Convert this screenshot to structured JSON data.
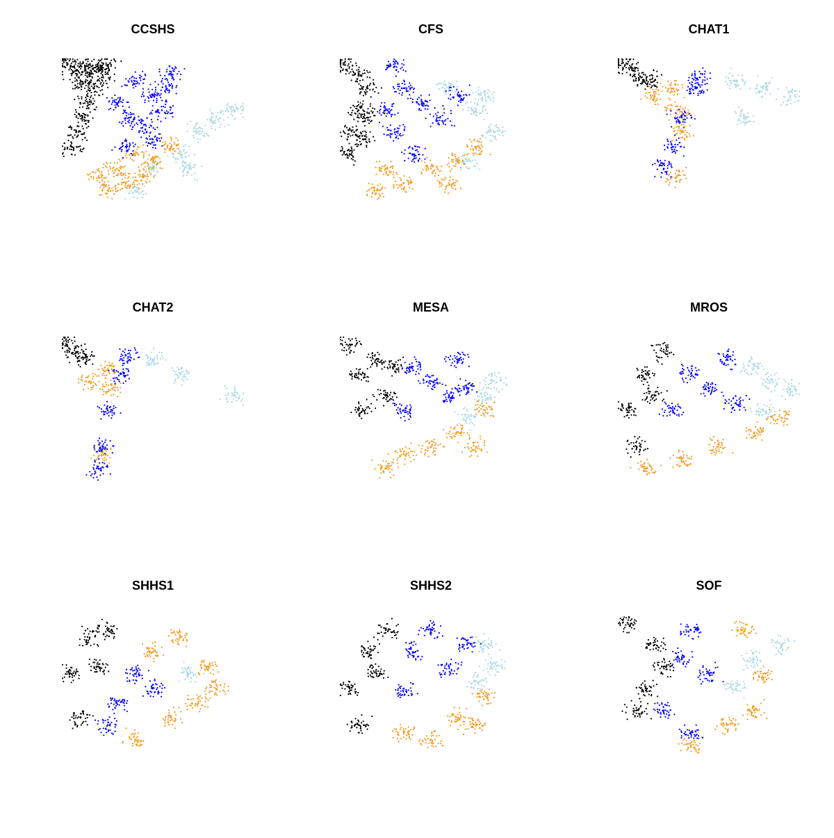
{
  "figure": {
    "description_type": "scatter grid"
  },
  "colors": {
    "black": "#000000",
    "blue": "#0000ff",
    "orange": "#f39a1c",
    "lightblue": "#a8d8e6"
  },
  "chart_data": [
    {
      "type": "scatter",
      "title": "CCSHS",
      "xlabel": "",
      "ylabel": "",
      "grid": false,
      "series": [
        {
          "name": "black",
          "color": "#000000",
          "points": [
            [
              -0.95,
              0.92
            ],
            [
              -0.85,
              0.85
            ],
            [
              -0.75,
              0.9
            ],
            [
              -0.7,
              0.8
            ],
            [
              -0.8,
              0.7
            ],
            [
              -0.65,
              0.6
            ],
            [
              -0.72,
              0.4
            ],
            [
              -0.78,
              0.2
            ],
            [
              -0.85,
              0.0
            ],
            [
              -0.9,
              -0.2
            ],
            [
              -0.6,
              0.88
            ],
            [
              -0.55,
              0.75
            ],
            [
              -0.5,
              0.92
            ]
          ]
        },
        {
          "name": "blue",
          "color": "#0000ff",
          "points": [
            [
              -0.2,
              0.7
            ],
            [
              0.0,
              0.5
            ],
            [
              0.1,
              0.3
            ],
            [
              -0.1,
              0.1
            ],
            [
              -0.3,
              -0.2
            ],
            [
              0.2,
              0.8
            ],
            [
              -0.4,
              0.4
            ],
            [
              0.0,
              -0.1
            ],
            [
              0.15,
              0.6
            ],
            [
              -0.25,
              0.2
            ]
          ]
        },
        {
          "name": "orange",
          "color": "#f39a1c",
          "points": [
            [
              -0.6,
              -0.6
            ],
            [
              -0.4,
              -0.5
            ],
            [
              -0.2,
              -0.3
            ],
            [
              -0.5,
              -0.8
            ],
            [
              -0.3,
              -0.7
            ],
            [
              0.0,
              -0.4
            ],
            [
              -0.1,
              -0.6
            ],
            [
              0.2,
              -0.2
            ]
          ]
        },
        {
          "name": "lightblue",
          "color": "#a8d8e6",
          "points": [
            [
              0.0,
              -0.5
            ],
            [
              0.3,
              -0.3
            ],
            [
              0.5,
              0.0
            ],
            [
              0.7,
              0.2
            ],
            [
              -0.2,
              -0.8
            ],
            [
              0.4,
              -0.5
            ],
            [
              0.9,
              0.3
            ]
          ]
        }
      ]
    },
    {
      "type": "scatter",
      "title": "CFS",
      "xlabel": "",
      "ylabel": "",
      "grid": false,
      "series": [
        {
          "name": "black",
          "color": "#000000",
          "points": [
            [
              -0.95,
              0.92
            ],
            [
              -0.8,
              0.8
            ],
            [
              -0.7,
              0.6
            ],
            [
              -0.8,
              0.3
            ],
            [
              -0.85,
              0.0
            ],
            [
              -0.9,
              -0.3
            ],
            [
              -0.75,
              -0.1
            ],
            [
              -0.7,
              0.2
            ]
          ]
        },
        {
          "name": "blue",
          "color": "#0000ff",
          "points": [
            [
              -0.4,
              0.9
            ],
            [
              -0.3,
              0.6
            ],
            [
              -0.1,
              0.4
            ],
            [
              0.1,
              0.2
            ],
            [
              -0.4,
              0.0
            ],
            [
              -0.2,
              -0.3
            ],
            [
              0.3,
              0.5
            ],
            [
              -0.5,
              0.3
            ]
          ]
        },
        {
          "name": "orange",
          "color": "#f39a1c",
          "points": [
            [
              -0.6,
              -0.8
            ],
            [
              -0.3,
              -0.7
            ],
            [
              0.0,
              -0.5
            ],
            [
              0.3,
              -0.4
            ],
            [
              0.5,
              -0.2
            ],
            [
              -0.5,
              -0.5
            ],
            [
              0.2,
              -0.7
            ]
          ]
        },
        {
          "name": "lightblue",
          "color": "#a8d8e6",
          "points": [
            [
              0.2,
              0.6
            ],
            [
              0.5,
              0.3
            ],
            [
              0.7,
              0.0
            ],
            [
              0.4,
              -0.4
            ],
            [
              0.6,
              0.5
            ]
          ]
        }
      ]
    },
    {
      "type": "scatter",
      "title": "CHAT1",
      "xlabel": "",
      "ylabel": "",
      "grid": false,
      "series": [
        {
          "name": "black",
          "color": "#000000",
          "points": [
            [
              -0.95,
              0.95
            ],
            [
              -0.85,
              0.85
            ],
            [
              -0.75,
              0.75
            ],
            [
              -0.65,
              0.72
            ]
          ]
        },
        {
          "name": "blue",
          "color": "#0000ff",
          "points": [
            [
              -0.1,
              0.75
            ],
            [
              -0.15,
              0.6
            ],
            [
              -0.3,
              0.2
            ],
            [
              -0.4,
              -0.2
            ],
            [
              -0.5,
              -0.5
            ]
          ]
        },
        {
          "name": "orange",
          "color": "#f39a1c",
          "points": [
            [
              -0.6,
              0.5
            ],
            [
              -0.4,
              0.6
            ],
            [
              -0.35,
              0.3
            ],
            [
              -0.3,
              0.0
            ],
            [
              -0.35,
              -0.6
            ]
          ]
        },
        {
          "name": "lightblue",
          "color": "#a8d8e6",
          "points": [
            [
              0.3,
              0.7
            ],
            [
              0.6,
              0.6
            ],
            [
              0.9,
              0.5
            ],
            [
              0.4,
              0.2
            ]
          ]
        }
      ]
    },
    {
      "type": "scatter",
      "title": "CHAT2",
      "xlabel": "",
      "ylabel": "",
      "grid": false,
      "series": [
        {
          "name": "black",
          "color": "#000000",
          "points": [
            [
              -0.95,
              0.9
            ],
            [
              -0.85,
              0.8
            ],
            [
              -0.75,
              0.72
            ]
          ]
        },
        {
          "name": "blue",
          "color": "#0000ff",
          "points": [
            [
              -0.3,
              0.75
            ],
            [
              -0.35,
              0.5
            ],
            [
              -0.5,
              0.0
            ],
            [
              -0.55,
              -0.5
            ],
            [
              -0.6,
              -0.8
            ]
          ]
        },
        {
          "name": "orange",
          "color": "#f39a1c",
          "points": [
            [
              -0.7,
              0.4
            ],
            [
              -0.5,
              0.55
            ],
            [
              -0.45,
              0.3
            ],
            [
              -0.55,
              -0.6
            ]
          ]
        },
        {
          "name": "lightblue",
          "color": "#a8d8e6",
          "points": [
            [
              0.0,
              0.7
            ],
            [
              0.3,
              0.5
            ],
            [
              0.9,
              0.2
            ]
          ]
        }
      ]
    },
    {
      "type": "scatter",
      "title": "MESA",
      "xlabel": "",
      "ylabel": "",
      "grid": false,
      "series": [
        {
          "name": "black",
          "color": "#000000",
          "points": [
            [
              -0.9,
              0.9
            ],
            [
              -0.8,
              0.5
            ],
            [
              -0.6,
              0.7
            ],
            [
              -0.5,
              0.2
            ],
            [
              -0.75,
              0.0
            ],
            [
              -0.4,
              0.6
            ]
          ]
        },
        {
          "name": "blue",
          "color": "#0000ff",
          "points": [
            [
              -0.2,
              0.6
            ],
            [
              0.0,
              0.4
            ],
            [
              0.2,
              0.2
            ],
            [
              -0.3,
              0.0
            ],
            [
              0.3,
              0.7
            ],
            [
              0.4,
              0.3
            ]
          ]
        },
        {
          "name": "orange",
          "color": "#f39a1c",
          "points": [
            [
              -0.3,
              -0.6
            ],
            [
              0.0,
              -0.5
            ],
            [
              0.3,
              -0.3
            ],
            [
              0.6,
              0.0
            ],
            [
              0.5,
              -0.5
            ],
            [
              -0.5,
              -0.8
            ]
          ]
        },
        {
          "name": "lightblue",
          "color": "#a8d8e6",
          "points": [
            [
              0.7,
              0.4
            ],
            [
              0.6,
              0.2
            ],
            [
              0.4,
              -0.1
            ]
          ]
        }
      ]
    },
    {
      "type": "scatter",
      "title": "MROS",
      "xlabel": "",
      "ylabel": "",
      "grid": false,
      "series": [
        {
          "name": "black",
          "color": "#000000",
          "points": [
            [
              -0.9,
              0.0
            ],
            [
              -0.7,
              0.5
            ],
            [
              -0.5,
              0.8
            ],
            [
              -0.8,
              -0.5
            ],
            [
              -0.6,
              0.2
            ]
          ]
        },
        {
          "name": "blue",
          "color": "#0000ff",
          "points": [
            [
              -0.2,
              0.5
            ],
            [
              0.0,
              0.3
            ],
            [
              -0.4,
              0.0
            ],
            [
              0.2,
              0.7
            ],
            [
              0.3,
              0.1
            ]
          ]
        },
        {
          "name": "orange",
          "color": "#f39a1c",
          "points": [
            [
              -0.7,
              -0.8
            ],
            [
              -0.3,
              -0.7
            ],
            [
              0.1,
              -0.5
            ],
            [
              0.5,
              -0.3
            ],
            [
              0.8,
              -0.1
            ]
          ]
        },
        {
          "name": "lightblue",
          "color": "#a8d8e6",
          "points": [
            [
              0.5,
              0.6
            ],
            [
              0.7,
              0.4
            ],
            [
              0.6,
              0.0
            ],
            [
              0.9,
              0.3
            ]
          ]
        }
      ]
    },
    {
      "type": "scatter",
      "title": "SHHS1",
      "xlabel": "",
      "ylabel": "",
      "grid": false,
      "series": [
        {
          "name": "black",
          "color": "#000000",
          "points": [
            [
              -0.9,
              0.2
            ],
            [
              -0.7,
              0.7
            ],
            [
              -0.5,
              0.8
            ],
            [
              -0.8,
              -0.4
            ],
            [
              -0.6,
              0.3
            ]
          ]
        },
        {
          "name": "blue",
          "color": "#0000ff",
          "points": [
            [
              -0.4,
              -0.2
            ],
            [
              -0.2,
              0.2
            ],
            [
              -0.5,
              -0.5
            ],
            [
              0.0,
              0.0
            ]
          ]
        },
        {
          "name": "orange",
          "color": "#f39a1c",
          "points": [
            [
              0.0,
              0.5
            ],
            [
              0.3,
              0.7
            ],
            [
              0.6,
              0.3
            ],
            [
              0.2,
              -0.4
            ],
            [
              -0.2,
              -0.7
            ],
            [
              0.5,
              -0.2
            ],
            [
              0.7,
              0.0
            ]
          ]
        },
        {
          "name": "lightblue",
          "color": "#a8d8e6",
          "points": [
            [
              0.4,
              0.2
            ]
          ]
        }
      ]
    },
    {
      "type": "scatter",
      "title": "SHHS2",
      "xlabel": "",
      "ylabel": "",
      "grid": false,
      "series": [
        {
          "name": "black",
          "color": "#000000",
          "points": [
            [
              -0.9,
              0.0
            ],
            [
              -0.7,
              0.5
            ],
            [
              -0.5,
              0.8
            ],
            [
              -0.8,
              -0.5
            ],
            [
              -0.6,
              0.2
            ]
          ]
        },
        {
          "name": "blue",
          "color": "#0000ff",
          "points": [
            [
              -0.2,
              0.5
            ],
            [
              0.0,
              0.8
            ],
            [
              0.2,
              0.3
            ],
            [
              -0.3,
              0.0
            ],
            [
              0.4,
              0.6
            ]
          ]
        },
        {
          "name": "orange",
          "color": "#f39a1c",
          "points": [
            [
              -0.3,
              -0.6
            ],
            [
              0.0,
              -0.7
            ],
            [
              0.3,
              -0.4
            ],
            [
              0.6,
              -0.1
            ],
            [
              0.5,
              -0.5
            ]
          ]
        },
        {
          "name": "lightblue",
          "color": "#a8d8e6",
          "points": [
            [
              0.6,
              0.6
            ],
            [
              0.7,
              0.3
            ],
            [
              0.5,
              0.1
            ]
          ]
        }
      ]
    },
    {
      "type": "scatter",
      "title": "SOF",
      "xlabel": "",
      "ylabel": "",
      "grid": false,
      "series": [
        {
          "name": "black",
          "color": "#000000",
          "points": [
            [
              -0.9,
              0.9
            ],
            [
              -0.6,
              0.6
            ],
            [
              -0.5,
              0.3
            ],
            [
              -0.7,
              0.0
            ],
            [
              -0.8,
              -0.3
            ]
          ]
        },
        {
          "name": "blue",
          "color": "#0000ff",
          "points": [
            [
              -0.2,
              0.8
            ],
            [
              -0.3,
              0.4
            ],
            [
              0.0,
              0.2
            ],
            [
              -0.5,
              -0.3
            ],
            [
              -0.2,
              -0.6
            ]
          ]
        },
        {
          "name": "orange",
          "color": "#f39a1c",
          "points": [
            [
              0.4,
              0.8
            ],
            [
              0.2,
              -0.5
            ],
            [
              0.5,
              -0.3
            ],
            [
              -0.2,
              -0.8
            ],
            [
              0.6,
              0.2
            ]
          ]
        },
        {
          "name": "lightblue",
          "color": "#a8d8e6",
          "points": [
            [
              0.5,
              0.4
            ],
            [
              0.8,
              0.6
            ],
            [
              0.3,
              0.0
            ]
          ]
        }
      ]
    }
  ]
}
